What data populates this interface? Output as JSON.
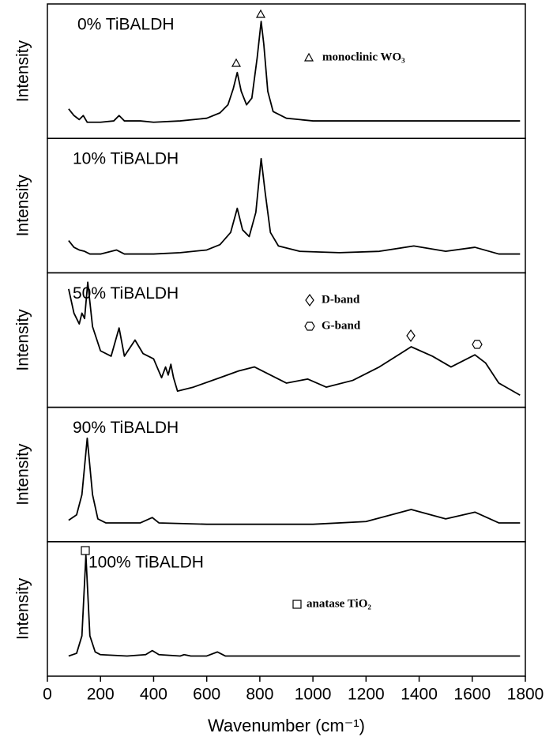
{
  "chart_data": [
    {
      "type": "line",
      "title": "0% TiBALDH",
      "ylabel": "Intensity",
      "annotations": [
        "monoclinic WO₃"
      ],
      "color": "#000000",
      "xlim": [
        0,
        1800
      ],
      "ylim": [
        0,
        100
      ],
      "x": [
        80,
        100,
        120,
        135,
        150,
        200,
        250,
        270,
        290,
        350,
        400,
        500,
        600,
        650,
        680,
        700,
        715,
        730,
        750,
        770,
        790,
        805,
        815,
        830,
        850,
        900,
        1000,
        1200,
        1400,
        1600,
        1780
      ],
      "values": [
        22,
        17,
        14,
        17,
        12,
        12,
        13,
        17,
        13,
        13,
        12,
        13,
        15,
        19,
        25,
        37,
        49,
        35,
        25,
        30,
        60,
        87,
        70,
        35,
        20,
        15,
        13,
        13,
        13,
        13,
        13
      ]
    },
    {
      "type": "line",
      "title": "10% TiBALDH",
      "ylabel": "Intensity",
      "color": "#000000",
      "xlim": [
        0,
        1800
      ],
      "ylim": [
        0,
        100
      ],
      "x": [
        80,
        100,
        120,
        140,
        160,
        200,
        260,
        290,
        400,
        500,
        600,
        650,
        690,
        715,
        735,
        760,
        785,
        805,
        820,
        840,
        870,
        950,
        1100,
        1250,
        1380,
        1500,
        1610,
        1700,
        1780
      ],
      "values": [
        24,
        19,
        17,
        16,
        14,
        14,
        17,
        14,
        14,
        15,
        17,
        21,
        30,
        48,
        32,
        27,
        45,
        85,
        60,
        30,
        20,
        16,
        15,
        16,
        20,
        16,
        19,
        14,
        14
      ]
    },
    {
      "type": "line",
      "title": "50% TiBALDH",
      "ylabel": "Intensity",
      "annotations": [
        "D-band",
        "G-band"
      ],
      "color": "#000000",
      "xlim": [
        0,
        1800
      ],
      "ylim": [
        0,
        100
      ],
      "x": [
        80,
        100,
        120,
        130,
        140,
        152,
        170,
        200,
        240,
        270,
        290,
        330,
        360,
        400,
        430,
        445,
        455,
        465,
        475,
        490,
        550,
        650,
        720,
        780,
        830,
        900,
        980,
        1050,
        1150,
        1250,
        1370,
        1450,
        1520,
        1610,
        1650,
        1700,
        1780
      ],
      "values": [
        88,
        70,
        62,
        70,
        66,
        93,
        60,
        42,
        38,
        59,
        38,
        50,
        40,
        36,
        22,
        30,
        24,
        32,
        22,
        12,
        15,
        22,
        27,
        30,
        25,
        18,
        21,
        15,
        20,
        30,
        45,
        38,
        30,
        39,
        33,
        18,
        9
      ]
    },
    {
      "type": "line",
      "title": "90% TiBALDH",
      "ylabel": "Intensity",
      "color": "#000000",
      "xlim": [
        0,
        1800
      ],
      "ylim": [
        0,
        100
      ],
      "x": [
        80,
        110,
        130,
        150,
        170,
        190,
        220,
        350,
        395,
        420,
        600,
        800,
        1000,
        1200,
        1370,
        1500,
        1610,
        1700,
        1780
      ],
      "values": [
        16,
        20,
        35,
        77,
        35,
        17,
        14,
        14,
        18,
        14,
        13,
        13,
        13,
        15,
        24,
        17,
        22,
        14,
        14
      ]
    },
    {
      "type": "line",
      "title": "100% TiBALDH",
      "ylabel": "Intensity",
      "annotations": [
        "anatase TiO₂"
      ],
      "color": "#000000",
      "xlim": [
        0,
        1800
      ],
      "ylim": [
        0,
        100
      ],
      "xticks": [
        0,
        200,
        400,
        600,
        800,
        1000,
        1200,
        1400,
        1600,
        1800
      ],
      "xlabel": "Wavenumber (cm⁻¹)",
      "x": [
        80,
        110,
        130,
        145,
        160,
        180,
        200,
        300,
        370,
        395,
        420,
        500,
        515,
        540,
        600,
        640,
        670,
        800,
        1780
      ],
      "values": [
        15,
        17,
        30,
        90,
        30,
        18,
        16,
        15,
        16,
        19,
        16,
        15,
        16,
        15,
        15,
        18,
        15,
        15,
        15
      ]
    }
  ]
}
